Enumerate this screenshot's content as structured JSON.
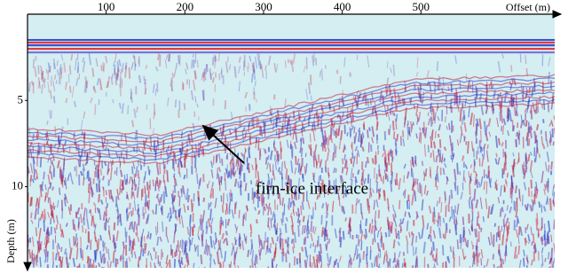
{
  "chart_data": {
    "type": "radargram",
    "xlabel": "Offset (m)",
    "ylabel": "Depth (m)",
    "xlim": [
      0,
      670
    ],
    "xticks": [
      100,
      200,
      300,
      400,
      500
    ],
    "ylim": [
      0,
      14.7
    ],
    "yticks": [
      5,
      10
    ],
    "annotation": "firn-ice interface"
  }
}
